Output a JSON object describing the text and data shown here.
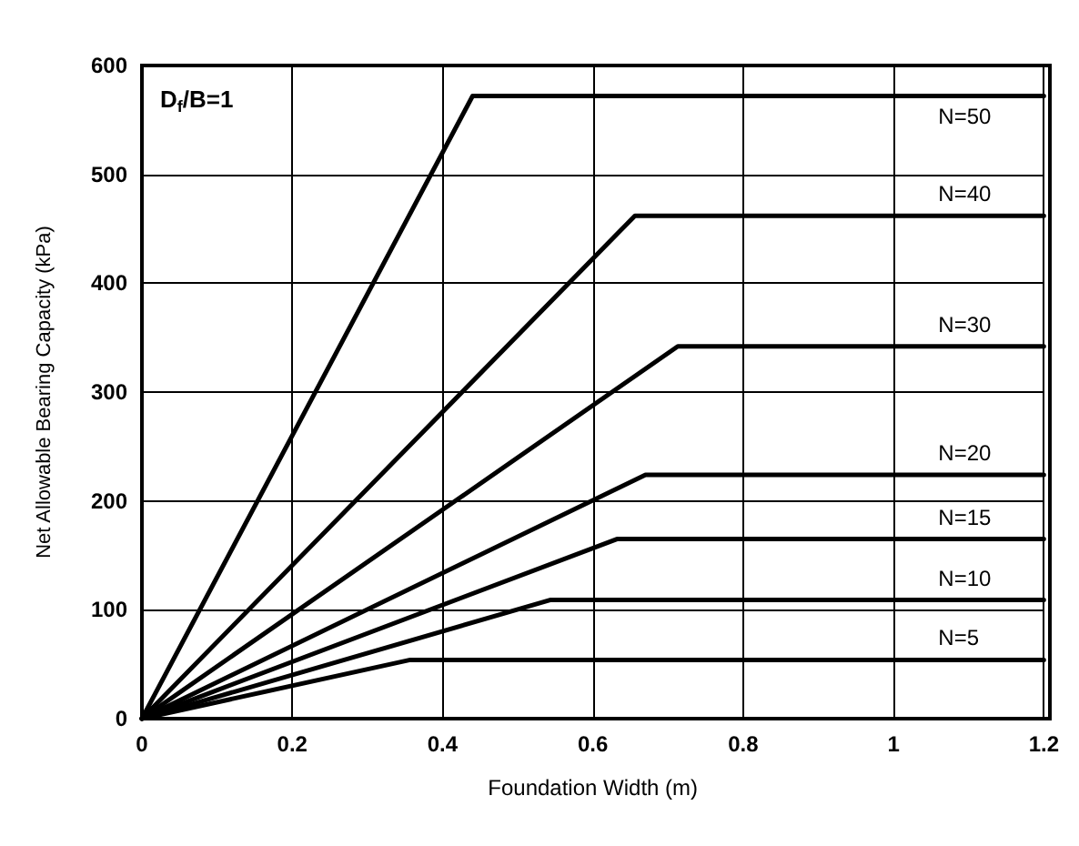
{
  "chart_data": {
    "type": "line",
    "xlabel": "Foundation Width (m)",
    "ylabel": "Net Allowable Bearing Capacity (kPa)",
    "annotations": [
      "D$_{f}$/B=1"
    ],
    "series": [
      {
        "name": "N=50",
        "color": "#000000",
        "x": [
          0,
          0.44,
          1.2
        ],
        "values": [
          0,
          572,
          572
        ]
      },
      {
        "name": "N=40",
        "color": "#000000",
        "x": [
          0,
          0.656,
          1.2
        ],
        "values": [
          0,
          462,
          462
        ]
      },
      {
        "name": "N=30",
        "color": "#000000",
        "x": [
          0,
          0.713,
          1.2
        ],
        "values": [
          0,
          342,
          342
        ]
      },
      {
        "name": "N=20",
        "color": "#000000",
        "x": [
          0,
          0.67,
          1.2
        ],
        "values": [
          0,
          224,
          224
        ]
      },
      {
        "name": "N=15",
        "color": "#000000",
        "x": [
          0,
          0.632,
          1.2
        ],
        "values": [
          0,
          165,
          165
        ]
      },
      {
        "name": "N=10",
        "color": "#000000",
        "x": [
          0,
          0.543,
          1.2
        ],
        "values": [
          0,
          109,
          109
        ]
      },
      {
        "name": "N=5",
        "color": "#000000",
        "x": [
          0,
          0.357,
          1.2
        ],
        "values": [
          0,
          54,
          54
        ]
      }
    ],
    "xlim": [
      0,
      1.2
    ],
    "xticks": [
      0,
      0.2,
      0.4,
      0.6,
      0.8,
      1,
      1.2
    ],
    "ylim": [
      0,
      600
    ],
    "yticks": [
      0,
      100,
      200,
      300,
      400,
      500,
      600
    ],
    "grid": true,
    "legend": false,
    "marker": "none",
    "line_style": "solid"
  }
}
